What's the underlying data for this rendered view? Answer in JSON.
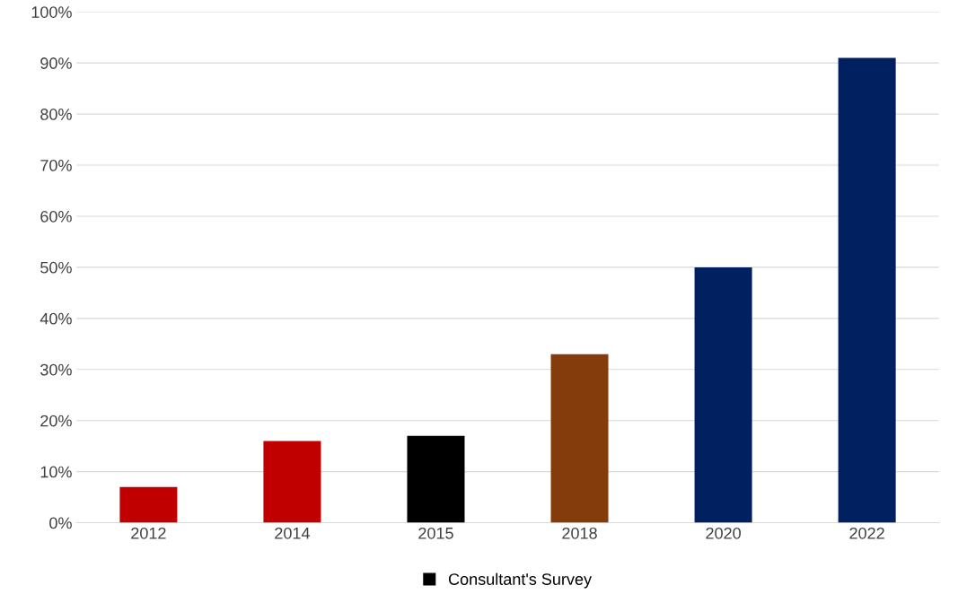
{
  "chart_data": {
    "type": "bar",
    "categories": [
      "2012",
      "2014",
      "2015",
      "2018",
      "2020",
      "2022"
    ],
    "series": [
      {
        "color": "#c00000",
        "values": [
          7,
          16,
          null,
          null,
          null,
          null
        ]
      },
      {
        "name": "Consultant's Survey",
        "color": "#000000",
        "values": [
          null,
          null,
          17,
          null,
          null,
          null
        ]
      },
      {
        "color": "#843c0c",
        "values": [
          null,
          null,
          null,
          33,
          null,
          null
        ]
      },
      {
        "color": "#002060",
        "values": [
          null,
          null,
          null,
          null,
          50,
          91
        ]
      }
    ],
    "ylim": [
      0,
      100
    ],
    "yticks": [
      {
        "value": 0,
        "label": "0%"
      },
      {
        "value": 10,
        "label": "10%"
      },
      {
        "value": 20,
        "label": "20%"
      },
      {
        "value": 30,
        "label": "30%"
      },
      {
        "value": 40,
        "label": "40%"
      },
      {
        "value": 50,
        "label": "50%"
      },
      {
        "value": 60,
        "label": "60%"
      },
      {
        "value": 70,
        "label": "70%"
      },
      {
        "value": 80,
        "label": "80%"
      },
      {
        "value": 90,
        "label": "90%"
      },
      {
        "value": 100,
        "label": "100%"
      }
    ],
    "grid": "y",
    "legend": "bottom"
  }
}
